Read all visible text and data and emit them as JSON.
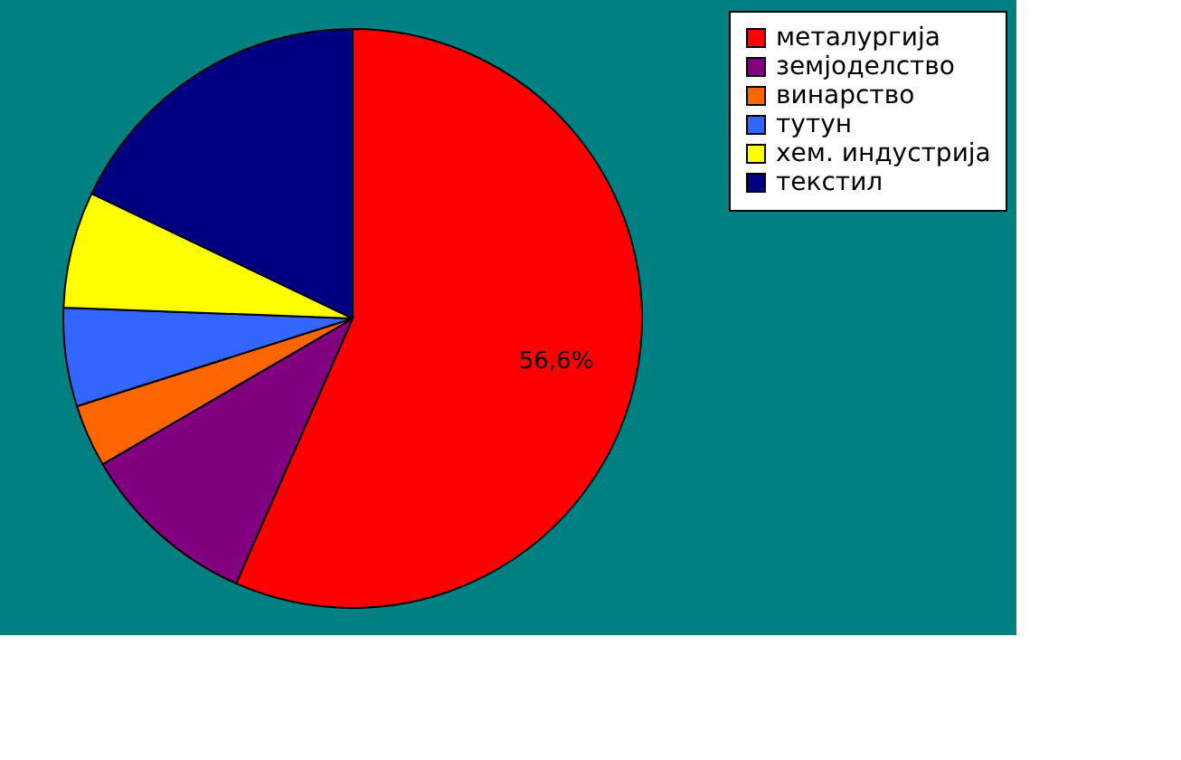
{
  "chart_data": {
    "type": "pie",
    "categories": [
      "металургија",
      "земјоделство",
      "винарство",
      "тутун",
      "хем. индустрија",
      "текстил"
    ],
    "values": [
      56.6,
      10,
      3.5,
      5.5,
      6.5,
      17.9
    ],
    "colors": [
      "#ff0000",
      "#800080",
      "#ff6600",
      "#3366ff",
      "#ffff00",
      "#000080"
    ],
    "value_labels": [
      "56,6%",
      null,
      null,
      null,
      null,
      null
    ],
    "legend": "right"
  }
}
